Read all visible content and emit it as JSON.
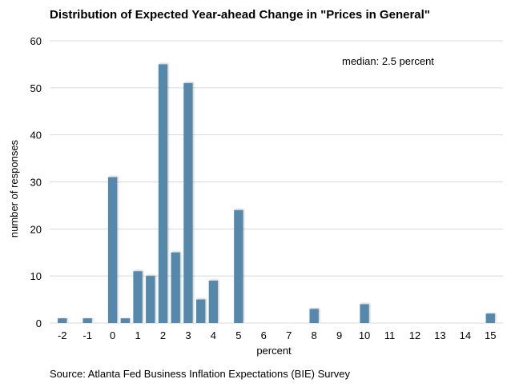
{
  "chart_data": {
    "type": "bar",
    "title": "Distribution of Expected Year-ahead Change in \"Prices in General\"",
    "xlabel": "percent",
    "ylabel": "number of responses",
    "annotation": "median: 2.5 percent",
    "source": "Source: Atlanta Fed Business Inflation Expectations (BIE) Survey",
    "ylim": [
      0,
      60
    ],
    "yticks": [
      "0",
      "10",
      "20",
      "30",
      "40",
      "50",
      "60"
    ],
    "xlim": [
      -2.5,
      15.5
    ],
    "xticks": [
      "-2",
      "-1",
      "0",
      "1",
      "2",
      "3",
      "4",
      "5",
      "6",
      "7",
      "8",
      "9",
      "10",
      "11",
      "12",
      "13",
      "14",
      "15"
    ],
    "grid": true,
    "bar_color": "#5588aa",
    "x": [
      -2,
      -1,
      0,
      0.5,
      1,
      1.5,
      2,
      2.5,
      3,
      3.5,
      4,
      5,
      8,
      10,
      15
    ],
    "values": [
      1,
      1,
      31,
      1,
      11,
      10,
      55,
      15,
      51,
      5,
      9,
      24,
      3,
      4,
      2
    ]
  }
}
